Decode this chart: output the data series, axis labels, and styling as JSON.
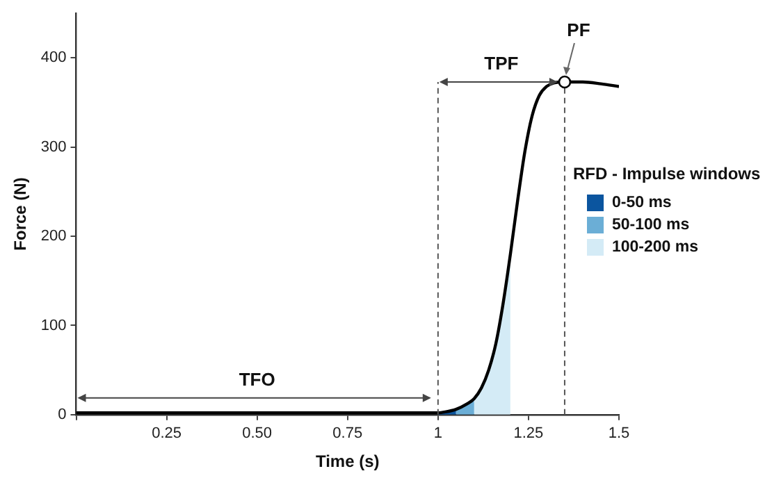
{
  "chart_data": {
    "type": "line",
    "xlabel": "Time (s)",
    "ylabel": "Force (N)",
    "legend_title": "RFD - Impulse windows",
    "legend": "right",
    "grid": false,
    "marker": "none",
    "line_style": "solid",
    "xlim": [
      0,
      1.5
    ],
    "ylim": [
      0,
      450
    ],
    "xticks": [
      {
        "value": 0,
        "label": null
      },
      0.25,
      {
        "value": 0.5,
        "label": "0.50"
      },
      0.75,
      1,
      1.25,
      1.5
    ],
    "yticks": [
      0,
      100,
      200,
      300,
      400
    ],
    "series": [
      {
        "type": "area",
        "name": "0-50 ms",
        "color": "#0b559f",
        "x": [
          1,
          1.02,
          1.05
        ],
        "values": [
          2,
          3,
          6
        ]
      },
      {
        "type": "area",
        "name": "50-100 ms",
        "color": "#6baed6",
        "x": [
          1.05,
          1.08,
          1.1
        ],
        "values": [
          6,
          12,
          18
        ]
      },
      {
        "type": "area",
        "name": "100-200 ms",
        "color": "#d4ebf6",
        "x": [
          1.1,
          1.12,
          1.14,
          1.16,
          1.18,
          1.2
        ],
        "values": [
          18,
          30,
          50,
          80,
          125,
          180
        ]
      },
      {
        "color": "#000000",
        "x": [
          0,
          1,
          1.02,
          1.05,
          1.08,
          1.1,
          1.12,
          1.14,
          1.16,
          1.18,
          1.2,
          1.22,
          1.24,
          1.26,
          1.28,
          1.3,
          1.32,
          1.35,
          1.4,
          1.45,
          1.5
        ],
        "values": [
          2,
          2,
          3,
          6,
          12,
          18,
          30,
          50,
          80,
          125,
          180,
          240,
          295,
          335,
          358,
          368,
          372,
          373,
          373,
          371,
          368
        ]
      }
    ],
    "ref_lines": [
      {
        "axis": "x",
        "value": 1,
        "line_style": "dashed",
        "color": "#555555"
      },
      {
        "axis": "x",
        "value": 1.35,
        "line_style": "dashed",
        "color": "#555555"
      }
    ],
    "annotations": [
      "TFO",
      "TPF",
      {
        "text": "PF",
        "x": 1.35,
        "y": 373
      }
    ]
  }
}
